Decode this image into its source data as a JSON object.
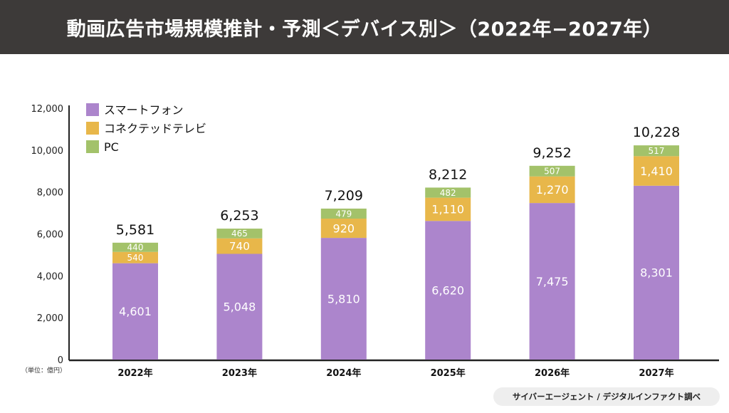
{
  "header": {
    "title": "動画広告市場規模推計・予測＜デバイス別＞（2022年−2027年）"
  },
  "unit_label": "（単位：億円）",
  "source": "サイバーエージェント / デジタルインファクト調べ",
  "chart_data": {
    "type": "bar",
    "stacked": true,
    "categories": [
      "2022年",
      "2023年",
      "2024年",
      "2025年",
      "2026年",
      "2027年"
    ],
    "series": [
      {
        "name": "スマートフォン",
        "color": "#ac85cc",
        "values": [
          4601,
          5048,
          5810,
          6620,
          7475,
          8301
        ],
        "labels": [
          "4,601",
          "5,048",
          "5,810",
          "6,620",
          "7,475",
          "8,301"
        ]
      },
      {
        "name": "コネクテッドテレビ",
        "color": "#e8b74a",
        "values": [
          540,
          740,
          920,
          1110,
          1270,
          1410
        ],
        "labels": [
          "540",
          "740",
          "920",
          "1,110",
          "1,270",
          "1,410"
        ]
      },
      {
        "name": "PC",
        "color": "#a3c26a",
        "values": [
          440,
          465,
          479,
          482,
          507,
          517
        ],
        "labels": [
          "440",
          "465",
          "479",
          "482",
          "507",
          "517"
        ]
      }
    ],
    "totals": [
      "5,581",
      "6,253",
      "7,209",
      "8,212",
      "9,252",
      "10,228"
    ],
    "ylim": [
      0,
      12000
    ],
    "yticks": [
      "0",
      "2,000",
      "4,000",
      "6,000",
      "8,000",
      "10,000",
      "12,000"
    ],
    "ytick_values": [
      0,
      2000,
      4000,
      6000,
      8000,
      10000,
      12000
    ],
    "grid": false,
    "legend_placement": "top-left"
  }
}
